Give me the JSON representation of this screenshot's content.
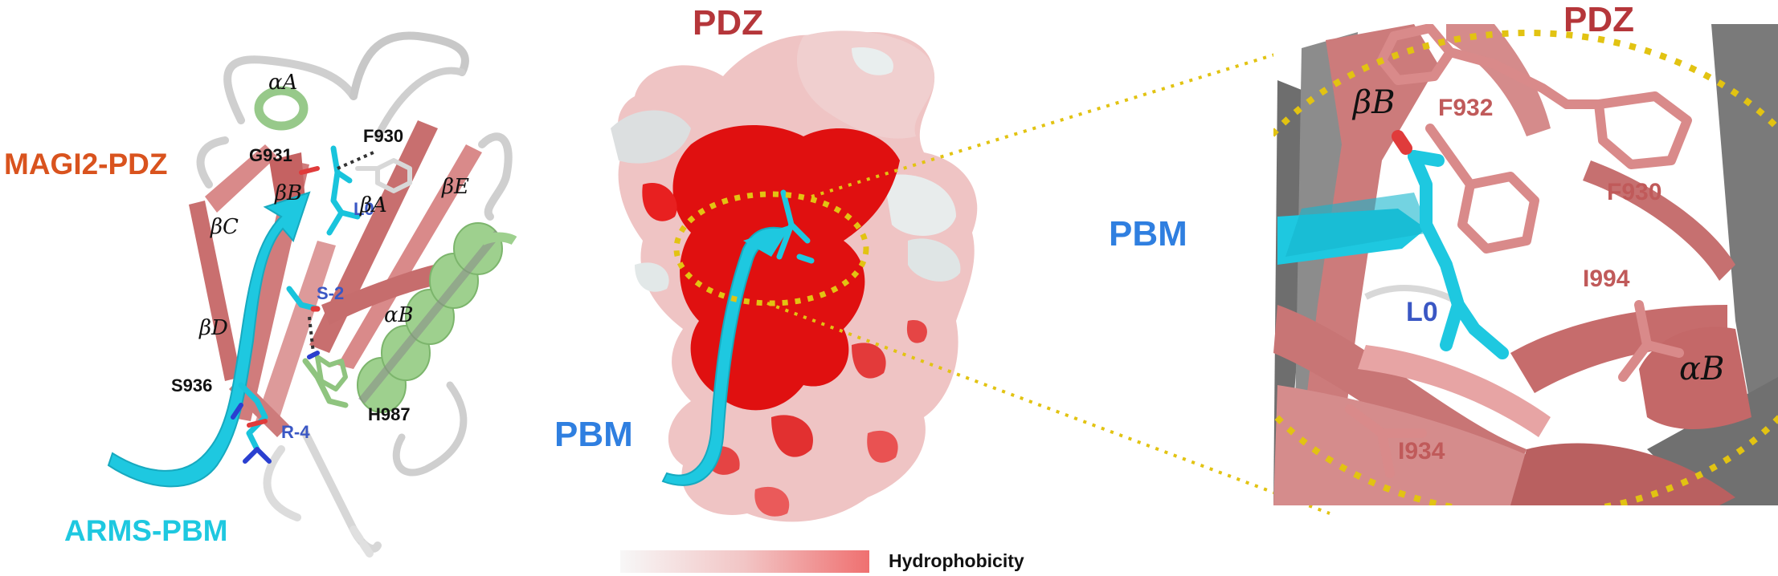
{
  "panel_left": {
    "title": "MAGI2-PDZ",
    "peptide": "ARMS-PBM",
    "residues_black": [
      "G931",
      "F930",
      "S936",
      "H987"
    ],
    "residues_blue": [
      "L0",
      "S-2",
      "R-4"
    ],
    "greek": [
      "αA",
      "βB",
      "βA",
      "βE",
      "βC",
      "αB",
      "βD"
    ]
  },
  "panel_middle": {
    "domain_label": "PDZ",
    "peptide_label": "PBM",
    "scale_label": "Hydrophobicity"
  },
  "panel_right": {
    "domain_label": "PDZ",
    "peptide_label": "PBM",
    "residues_red": [
      "F932",
      "F930",
      "I994",
      "I934"
    ],
    "residue_blue": "L0",
    "greek": [
      "βB",
      "αB"
    ]
  },
  "colors": {
    "domain_red": "#b5363a",
    "magi_orange": "#d9531e",
    "peptide_cyan": "#1ec8e0",
    "residue_blue": "#3a57c4",
    "residue_salmon": "#c05a5a",
    "highlight_yellow": "#e2c312"
  }
}
